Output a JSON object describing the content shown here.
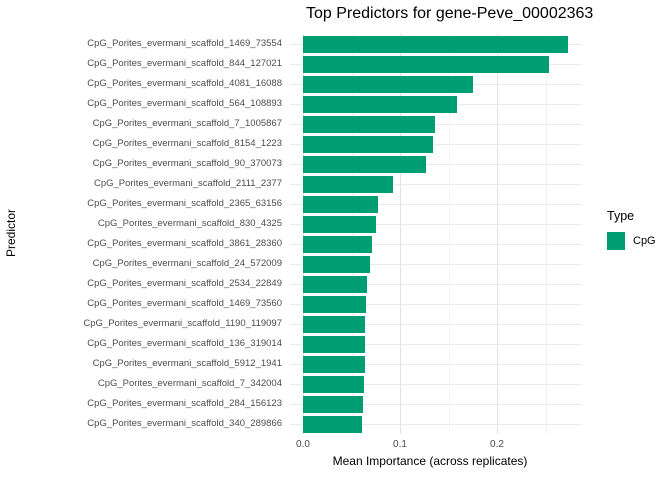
{
  "title": "Top Predictors for gene-Peve_00002363",
  "colors": {
    "bar": "#009E73",
    "grid_major": "#e3e3e3",
    "grid_minor": "#f2f2f2",
    "tick_text": "#4d4d4d",
    "background": "#ffffff"
  },
  "legend": {
    "title": "Type",
    "entries": [
      {
        "label": "CpG",
        "color": "#009E73"
      }
    ],
    "position": "right"
  },
  "chart_data": {
    "type": "bar",
    "orientation": "horizontal",
    "title": "Top Predictors for gene-Peve_00002363",
    "xlabel": "Mean Importance (across replicates)",
    "ylabel": "Predictor",
    "grid": true,
    "xlim": [
      0,
      0.2866
    ],
    "x_ticks": [
      {
        "value": 0.0,
        "label": "0.0"
      },
      {
        "value": 0.1,
        "label": "0.1"
      },
      {
        "value": 0.2,
        "label": "0.2"
      }
    ],
    "x_minor_gridlines": [
      0.05,
      0.15,
      0.25
    ],
    "legend_title": "Type",
    "series_name": "CpG",
    "categories": [
      "CpG_Porites_evermani_scaffold_1469_73554",
      "CpG_Porites_evermani_scaffold_844_127021",
      "CpG_Porites_evermani_scaffold_4081_16088",
      "CpG_Porites_evermani_scaffold_564_108893",
      "CpG_Porites_evermani_scaffold_7_1005867",
      "CpG_Porites_evermani_scaffold_8154_1223",
      "CpG_Porites_evermani_scaffold_90_370073",
      "CpG_Porites_evermani_scaffold_2111_2377",
      "CpG_Porites_evermani_scaffold_2365_63156",
      "CpG_Porites_evermani_scaffold_830_4325",
      "CpG_Porites_evermani_scaffold_3861_28360",
      "CpG_Porites_evermani_scaffold_24_572009",
      "CpG_Porites_evermani_scaffold_2534_22849",
      "CpG_Porites_evermani_scaffold_1469_73560",
      "CpG_Porites_evermani_scaffold_1190_119097",
      "CpG_Porites_evermani_scaffold_136_319014",
      "CpG_Porites_evermani_scaffold_5912_1941",
      "CpG_Porites_evermani_scaffold_7_342004",
      "CpG_Porites_evermani_scaffold_284_156123",
      "CpG_Porites_evermani_scaffold_340_289866"
    ],
    "values": [
      0.273,
      0.254,
      0.175,
      0.159,
      0.136,
      0.134,
      0.127,
      0.093,
      0.077,
      0.075,
      0.071,
      0.069,
      0.066,
      0.065,
      0.064,
      0.064,
      0.064,
      0.063,
      0.062,
      0.061
    ]
  }
}
